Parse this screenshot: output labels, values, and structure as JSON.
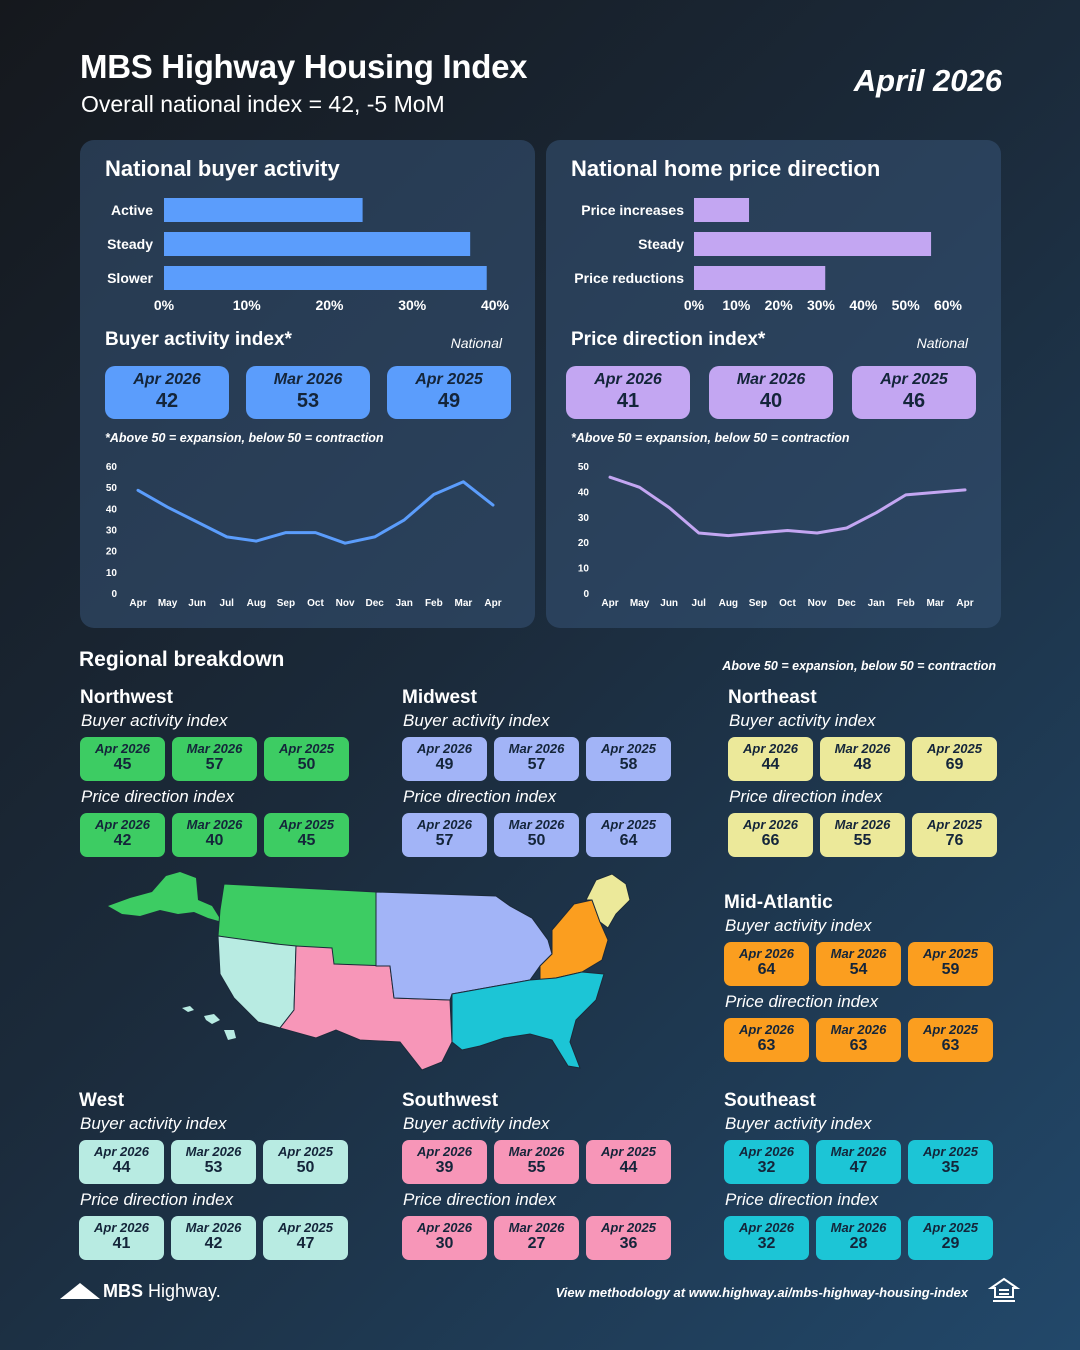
{
  "header": {
    "title": "MBS Highway Housing Index",
    "subtitle": "Overall national index = 42, -5 MoM",
    "date": "April 2026"
  },
  "colors": {
    "blue": "#5b9dfc",
    "purple": "#c3a6f2",
    "northwest": "#3dcc63",
    "midwest": "#a2b4f7",
    "northeast": "#ece99a",
    "mid_atlantic": "#fb9e1f",
    "west": "#b8ebe2",
    "southwest": "#f796b8",
    "southeast": "#1cc5d6"
  },
  "buyer_panel": {
    "title": "National buyer activity",
    "index_title": "Buyer activity index*",
    "national": "National",
    "note": "*Above 50 = expansion, below 50 = contraction",
    "kpis": [
      {
        "label": "Apr 2026",
        "value": "42"
      },
      {
        "label": "Mar 2026",
        "value": "53"
      },
      {
        "label": "Apr 2025",
        "value": "49"
      }
    ]
  },
  "price_panel": {
    "title": "National home price direction",
    "index_title": "Price direction index*",
    "national": "National",
    "note": "*Above 50 = expansion, below 50 = contraction",
    "kpis": [
      {
        "label": "Apr 2026",
        "value": "41"
      },
      {
        "label": "Mar 2026",
        "value": "40"
      },
      {
        "label": "Apr 2025",
        "value": "46"
      }
    ]
  },
  "chart_data": [
    {
      "type": "bar",
      "orientation": "horizontal",
      "title": "National buyer activity",
      "categories": [
        "Active",
        "Steady",
        "Slower"
      ],
      "values": [
        24,
        37,
        39
      ],
      "x_ticks": [
        "0%",
        "10%",
        "20%",
        "30%",
        "40%"
      ],
      "xlim": [
        0,
        40
      ]
    },
    {
      "type": "bar",
      "orientation": "horizontal",
      "title": "National home price direction",
      "categories": [
        "Price increases",
        "Steady",
        "Price reductions"
      ],
      "values": [
        13,
        56,
        31
      ],
      "x_ticks": [
        "0%",
        "10%",
        "20%",
        "30%",
        "40%",
        "50%",
        "60%"
      ],
      "xlim": [
        0,
        60
      ]
    },
    {
      "type": "line",
      "title": "Buyer activity index",
      "x": [
        "Apr",
        "May",
        "Jun",
        "Jul",
        "Aug",
        "Sep",
        "Oct",
        "Nov",
        "Dec",
        "Jan",
        "Feb",
        "Mar",
        "Apr"
      ],
      "values": [
        49,
        41,
        34,
        27,
        25,
        29,
        29,
        24,
        27,
        35,
        47,
        53,
        42
      ],
      "y_ticks": [
        0,
        10,
        20,
        30,
        40,
        50,
        60
      ],
      "ylim": [
        0,
        60
      ]
    },
    {
      "type": "line",
      "title": "Price direction index",
      "x": [
        "Apr",
        "May",
        "Jun",
        "Jul",
        "Aug",
        "Sep",
        "Oct",
        "Nov",
        "Dec",
        "Jan",
        "Feb",
        "Mar",
        "Apr"
      ],
      "values": [
        46,
        42,
        34,
        24,
        23,
        24,
        25,
        24,
        26,
        32,
        39,
        40,
        41
      ],
      "y_ticks": [
        0,
        10,
        20,
        30,
        40,
        50
      ],
      "ylim": [
        0,
        50
      ]
    }
  ],
  "regional": {
    "title": "Regional breakdown",
    "note": "Above 50 = expansion, below 50 = contraction",
    "buyer_label": "Buyer activity index",
    "price_label": "Price direction index",
    "periods": [
      "Apr 2026",
      "Mar 2026",
      "Apr 2025"
    ],
    "regions": {
      "northwest": {
        "name": "Northwest",
        "buyer": [
          "45",
          "57",
          "50"
        ],
        "price": [
          "42",
          "40",
          "45"
        ]
      },
      "midwest": {
        "name": "Midwest",
        "buyer": [
          "49",
          "57",
          "58"
        ],
        "price": [
          "57",
          "50",
          "64"
        ]
      },
      "northeast": {
        "name": "Northeast",
        "buyer": [
          "44",
          "48",
          "69"
        ],
        "price": [
          "66",
          "55",
          "76"
        ]
      },
      "mid_atlantic": {
        "name": "Mid-Atlantic",
        "buyer": [
          "64",
          "54",
          "59"
        ],
        "price": [
          "63",
          "63",
          "63"
        ]
      },
      "west": {
        "name": "West",
        "buyer": [
          "44",
          "53",
          "50"
        ],
        "price": [
          "41",
          "42",
          "47"
        ]
      },
      "southwest": {
        "name": "Southwest",
        "buyer": [
          "39",
          "55",
          "44"
        ],
        "price": [
          "30",
          "27",
          "36"
        ]
      },
      "southeast": {
        "name": "Southeast",
        "buyer": [
          "32",
          "47",
          "35"
        ],
        "price": [
          "32",
          "28",
          "29"
        ]
      }
    }
  },
  "footer": {
    "brand_bold": "MBS",
    "brand_light": "Highway.",
    "methodology": "View methodology at www.highway.ai/mbs-highway-housing-index"
  }
}
